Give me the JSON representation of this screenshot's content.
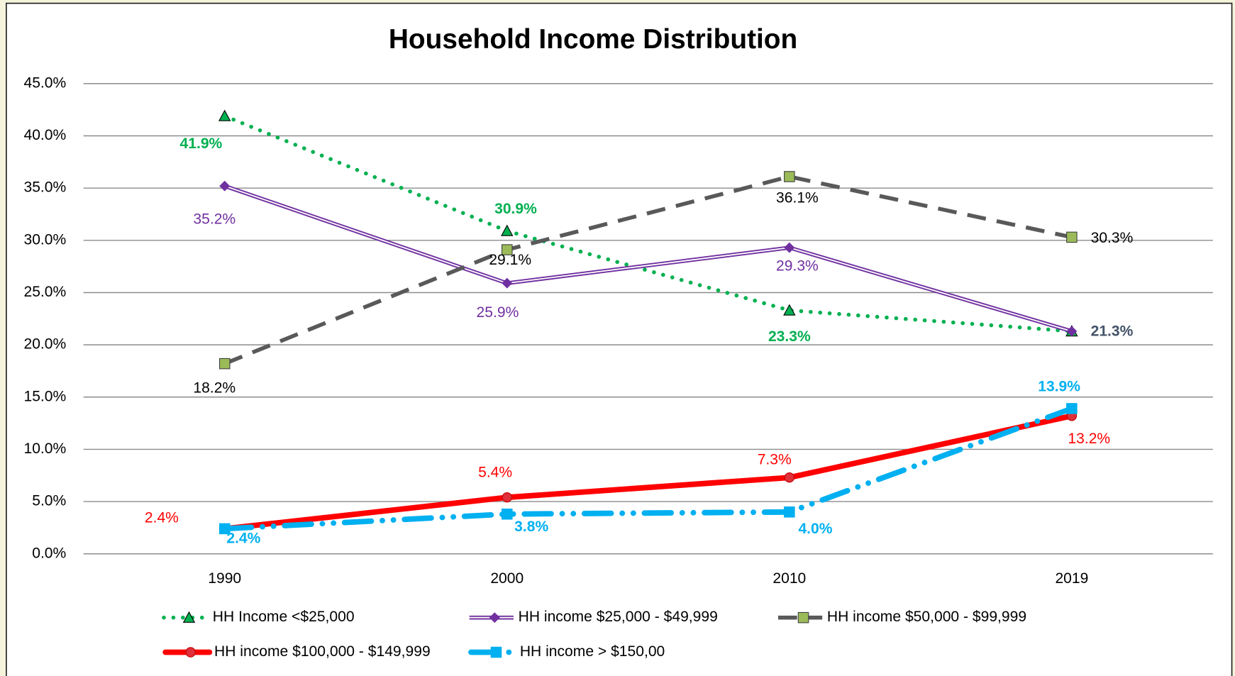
{
  "chart_data": {
    "type": "line",
    "title": "Household Income Distribution",
    "categories": [
      "1990",
      "2000",
      "2010",
      "2019"
    ],
    "ylim": [
      0,
      45
    ],
    "yticks": [
      {
        "value": 0,
        "label": "0.0%"
      },
      {
        "value": 5,
        "label": "5.0%"
      },
      {
        "value": 10,
        "label": "10.0%"
      },
      {
        "value": 15,
        "label": "15.0%"
      },
      {
        "value": 20,
        "label": "20.0%"
      },
      {
        "value": 25,
        "label": "25.0%"
      },
      {
        "value": 30,
        "label": "30.0%"
      },
      {
        "value": 35,
        "label": "35.0%"
      },
      {
        "value": 40,
        "label": "40.0%"
      },
      {
        "value": 45,
        "label": "45.0%"
      }
    ],
    "grid": true,
    "legend": "bottom",
    "series": [
      {
        "name": "HH Income <$25,000",
        "color": "#00b050",
        "style": "dotted",
        "marker": "triangle",
        "values": [
          41.9,
          30.9,
          23.3,
          21.3
        ],
        "value_labels": [
          "41.9%",
          "30.9%",
          "23.3%",
          "21.3%"
        ]
      },
      {
        "name": "HH income $25,000 - $49,999",
        "color": "#7030a0",
        "style": "double",
        "marker": "diamond",
        "values": [
          35.2,
          25.9,
          29.3,
          21.3
        ],
        "value_labels": [
          "35.2%",
          "25.9%",
          "29.3%",
          "21.3%"
        ]
      },
      {
        "name": "HH income $50,000 - $99,999",
        "color": "#595959",
        "style": "dashed",
        "marker": "square",
        "values": [
          18.2,
          29.1,
          36.1,
          30.3
        ],
        "value_labels": [
          "18.2%",
          "29.1%",
          "36.1%",
          "30.3%"
        ]
      },
      {
        "name": "HH income $100,000 - $149,999",
        "color": "#ff0000",
        "style": "solid",
        "marker": "circle",
        "values": [
          2.4,
          5.4,
          7.3,
          13.2
        ],
        "value_labels": [
          "2.4%",
          "5.4%",
          "7.3%",
          "13.2%"
        ]
      },
      {
        "name": "HH income > $150,00",
        "color": "#00b0f0",
        "style": "dashdot",
        "marker": "square",
        "values": [
          2.4,
          3.8,
          4.0,
          13.9
        ],
        "value_labels": [
          "2.4%",
          "3.8%",
          "4.0%",
          "13.9%"
        ]
      }
    ]
  }
}
